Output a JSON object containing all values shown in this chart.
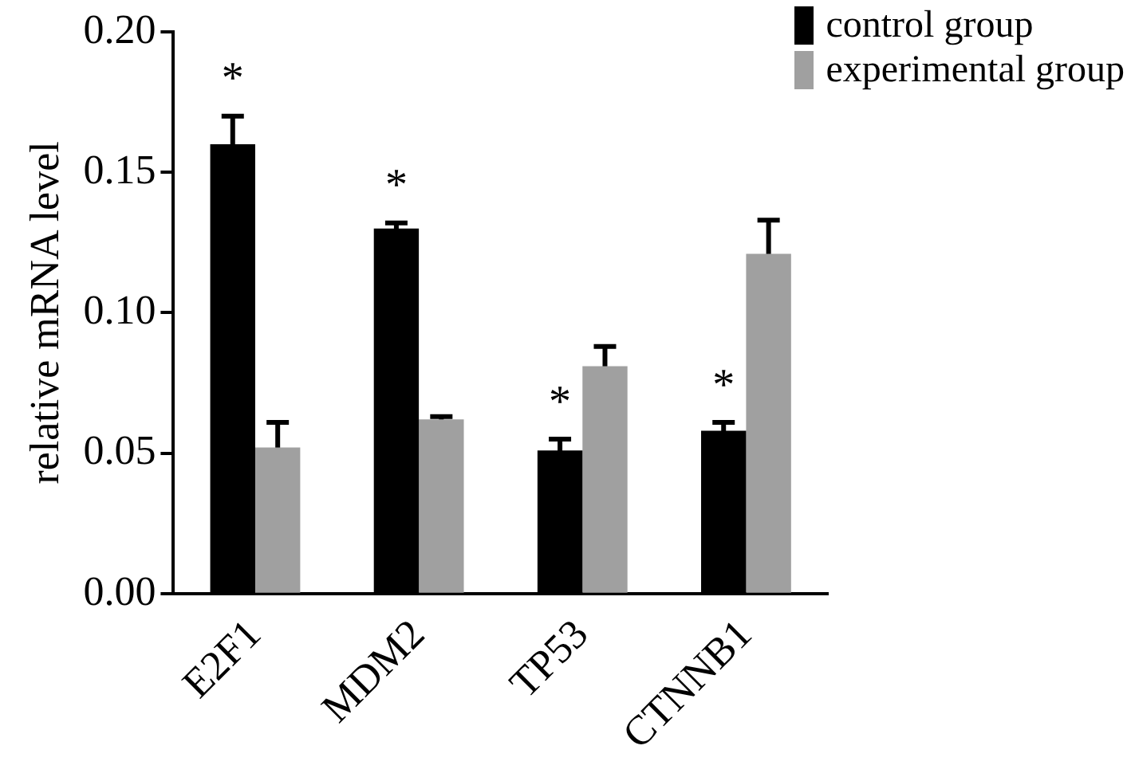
{
  "chart_data": {
    "type": "bar",
    "ylabel": "relative mRNA level",
    "categories": [
      "E2F1",
      "MDM2",
      "TP53",
      "CTNNB1"
    ],
    "series": [
      {
        "name": "control group",
        "color": "#000000",
        "values": [
          0.16,
          0.13,
          0.051,
          0.058
        ],
        "errors": [
          0.01,
          0.002,
          0.004,
          0.003
        ]
      },
      {
        "name": "experimental group",
        "color": "#a0a0a0",
        "values": [
          0.052,
          0.062,
          0.081,
          0.121
        ],
        "errors": [
          0.009,
          0.001,
          0.007,
          0.012
        ]
      }
    ],
    "annotations": [
      {
        "text": "*",
        "x": "E2F1",
        "y": 0.16
      },
      {
        "text": "*",
        "x": "MDM2",
        "y": 0.13
      },
      {
        "text": "*",
        "x": "TP53",
        "y": 0.051
      },
      {
        "text": "*",
        "x": "CTNNB1",
        "y": 0.058
      }
    ],
    "ylim": [
      0,
      0.2
    ],
    "yticks": [
      {
        "value": 0,
        "label": "0.00"
      },
      0.05,
      {
        "value": 0.1,
        "label": "0.10"
      },
      0.15,
      {
        "value": 0.2,
        "label": "0.20"
      }
    ],
    "grid": false,
    "legend": "top right"
  }
}
